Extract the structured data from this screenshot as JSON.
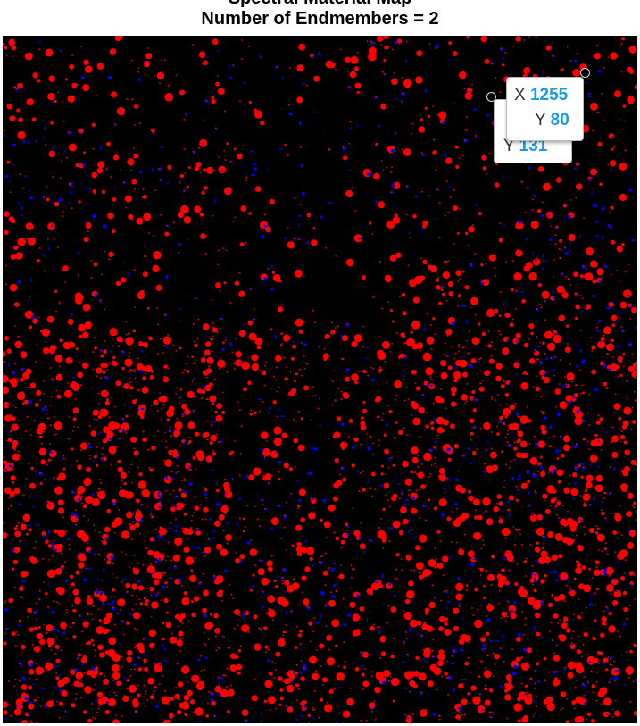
{
  "figure": {
    "title_line1": "Spectral Material Map",
    "title_line2": "Number of Endmembers = 2"
  },
  "classes": {
    "class_1_color": "#ff0000",
    "class_2_color": "#0000ff",
    "background_color": "#000000"
  },
  "datatips": [
    {
      "x_label": "X",
      "x_value": "",
      "y_label": "Y",
      "y_value": "131"
    },
    {
      "x_label": "X",
      "x_value": "1255",
      "y_label": "Y",
      "y_value": "80"
    }
  ]
}
